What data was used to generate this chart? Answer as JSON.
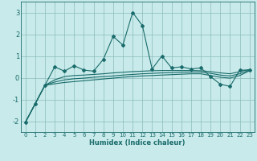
{
  "xlabel": "Humidex (Indice chaleur)",
  "bg_color": "#c8eaea",
  "grid_color": "#8bbcbc",
  "line_color": "#1a6b6b",
  "xlim": [
    -0.5,
    23.5
  ],
  "ylim": [
    -2.5,
    3.5
  ],
  "yticks": [
    -2,
    -1,
    0,
    1,
    2,
    3
  ],
  "xticks": [
    0,
    1,
    2,
    3,
    4,
    5,
    6,
    7,
    8,
    9,
    10,
    11,
    12,
    13,
    14,
    15,
    16,
    17,
    18,
    19,
    20,
    21,
    22,
    23
  ],
  "line1_x": [
    0,
    1,
    2,
    3,
    4,
    5,
    6,
    7,
    8,
    9,
    10,
    11,
    12,
    13,
    14,
    15,
    16,
    17,
    18,
    19,
    20,
    21,
    22,
    23
  ],
  "line1_y": [
    -2.05,
    -1.2,
    -0.35,
    0.5,
    0.3,
    0.55,
    0.35,
    0.3,
    0.85,
    1.9,
    1.5,
    3.0,
    2.4,
    0.4,
    1.0,
    0.45,
    0.5,
    0.4,
    0.45,
    0.05,
    -0.3,
    -0.4,
    0.35,
    0.35
  ],
  "line2_x": [
    0,
    1,
    2,
    3,
    4,
    5,
    6,
    7,
    8,
    9,
    10,
    11,
    12,
    13,
    14,
    15,
    16,
    17,
    18,
    19,
    20,
    21,
    22,
    23
  ],
  "line2_y": [
    -2.05,
    -1.2,
    -0.35,
    -0.1,
    0.05,
    0.1,
    0.12,
    0.15,
    0.18,
    0.22,
    0.25,
    0.28,
    0.3,
    0.32,
    0.33,
    0.33,
    0.33,
    0.33,
    0.32,
    0.28,
    0.22,
    0.18,
    0.28,
    0.38
  ],
  "line3_x": [
    0,
    1,
    2,
    3,
    4,
    5,
    6,
    7,
    8,
    9,
    10,
    11,
    12,
    13,
    14,
    15,
    16,
    17,
    18,
    19,
    20,
    21,
    22,
    23
  ],
  "line3_y": [
    -2.05,
    -1.2,
    -0.35,
    -0.2,
    -0.1,
    -0.05,
    -0.02,
    0.02,
    0.05,
    0.08,
    0.12,
    0.15,
    0.18,
    0.2,
    0.22,
    0.23,
    0.25,
    0.26,
    0.26,
    0.2,
    0.12,
    0.08,
    0.18,
    0.35
  ],
  "line4_x": [
    0,
    1,
    2,
    3,
    4,
    5,
    6,
    7,
    8,
    9,
    10,
    11,
    12,
    13,
    14,
    15,
    16,
    17,
    18,
    19,
    20,
    21,
    22,
    23
  ],
  "line4_y": [
    -2.05,
    -1.2,
    -0.35,
    -0.28,
    -0.22,
    -0.18,
    -0.14,
    -0.1,
    -0.06,
    -0.02,
    0.02,
    0.05,
    0.08,
    0.1,
    0.12,
    0.14,
    0.16,
    0.18,
    0.18,
    0.1,
    0.02,
    -0.02,
    0.1,
    0.32
  ]
}
